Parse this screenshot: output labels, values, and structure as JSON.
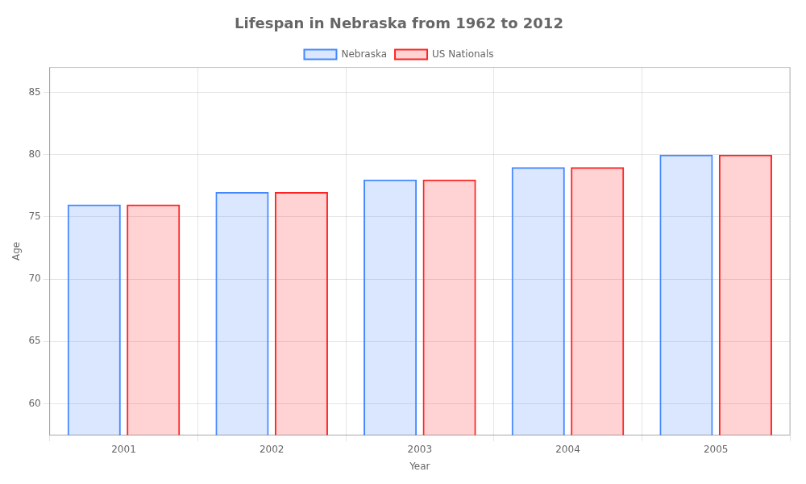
{
  "chart_data": {
    "type": "bar",
    "title": "Lifespan in Nebraska from 1962 to 2012",
    "xlabel": "Year",
    "ylabel": "Age",
    "categories": [
      "2001",
      "2002",
      "2003",
      "2004",
      "2005"
    ],
    "series": [
      {
        "name": "Nebraska",
        "color": "#4488ff",
        "values": [
          76,
          77,
          78,
          79,
          80
        ]
      },
      {
        "name": "US Nationals",
        "color": "#ff2222",
        "values": [
          76,
          77,
          78,
          79,
          80
        ]
      }
    ],
    "ylim": [
      57.5,
      87
    ],
    "yticks": [
      60,
      65,
      70,
      75,
      80,
      85
    ],
    "grid": true,
    "legend": "top"
  }
}
